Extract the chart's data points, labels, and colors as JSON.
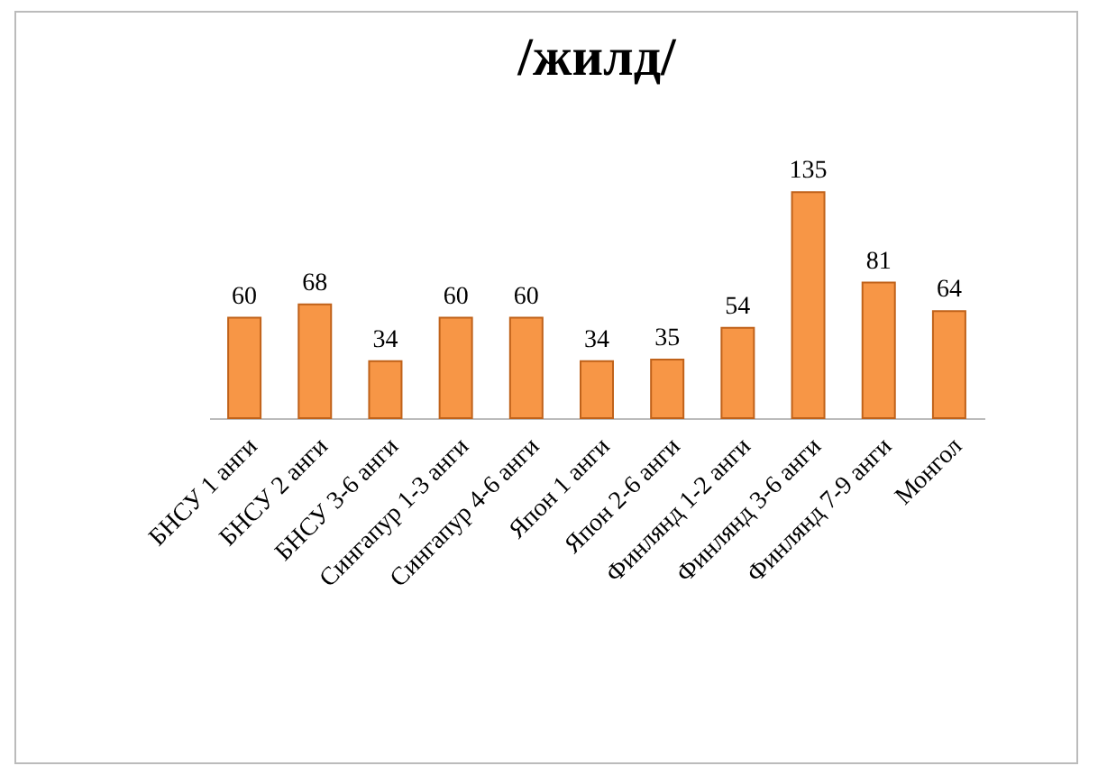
{
  "chart_data": {
    "type": "bar",
    "title": "/жилд/",
    "categories": [
      "БНСУ 1 анги",
      "БНСУ 2 анги",
      "БНСУ 3-6 анги",
      "Сингапур 1-3 анги",
      "Сингапур 4-6 анги",
      "Япон 1 анги",
      "Япон 2-6 анги",
      "Финлянд 1-2 анги",
      "Финлянд 3-6 анги",
      "Финлянд 7-9 анги",
      "Монгол"
    ],
    "values": [
      60,
      68,
      34,
      60,
      60,
      34,
      35,
      54,
      135,
      81,
      64
    ],
    "color": "#f79646",
    "data_labels": true
  }
}
